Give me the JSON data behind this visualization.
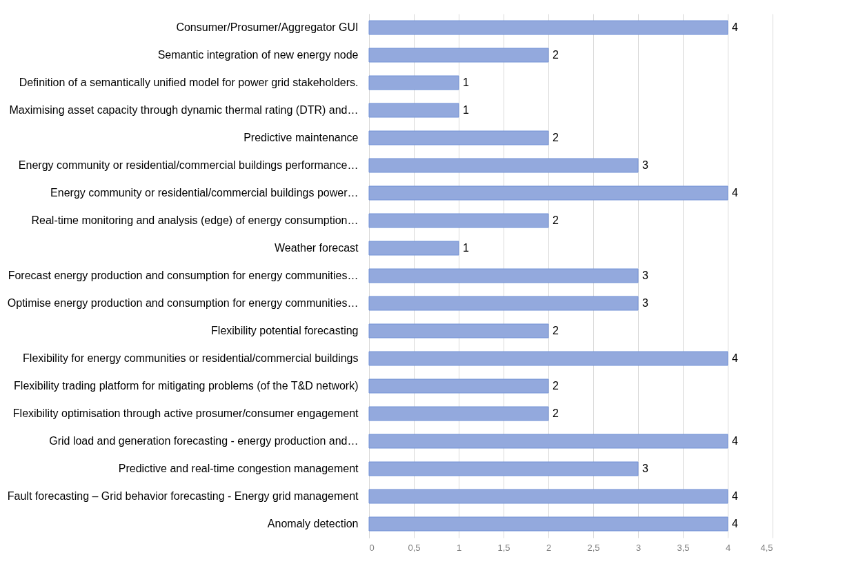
{
  "chart_data": {
    "type": "bar",
    "orientation": "horizontal",
    "categories": [
      "Consumer/Prosumer/Aggregator GUI",
      "Semantic integration of new energy node",
      "Definition of a semantically unified model for power grid stakeholders.",
      "Maximising asset capacity through dynamic thermal rating (DTR) and…",
      "Predictive maintenance",
      "Energy community or residential/commercial buildings performance…",
      "Energy community or residential/commercial buildings power…",
      "Real-time monitoring and analysis (edge) of energy consumption…",
      "Weather forecast",
      "Forecast energy production and consumption for energy communities…",
      "Optimise energy production and consumption for energy communities…",
      "Flexibility potential forecasting",
      "Flexibility for energy communities or residential/commercial buildings",
      "Flexibility trading platform for mitigating problems (of the T&D network)",
      "Flexibility optimisation through active prosumer/consumer engagement",
      "Grid load and generation forecasting - energy production and…",
      "Predictive and real-time congestion management",
      "Fault forecasting – Grid behavior forecasting - Energy grid management",
      "Anomaly detection"
    ],
    "values": [
      4,
      2,
      1,
      1,
      2,
      3,
      4,
      2,
      1,
      3,
      3,
      2,
      4,
      2,
      2,
      4,
      3,
      4,
      4
    ],
    "color": "#93a9dd",
    "xlim": [
      0,
      4.5
    ],
    "xticks": [
      0,
      {
        "value": 0.5,
        "label": "0,5"
      },
      1,
      {
        "value": 1.5,
        "label": "1,5"
      },
      2,
      {
        "value": 2.5,
        "label": "2,5"
      },
      3,
      {
        "value": 3.5,
        "label": "3,5"
      },
      4,
      {
        "value": 4.5,
        "label": "4,5"
      }
    ],
    "grid": "x",
    "data_labels": true
  }
}
